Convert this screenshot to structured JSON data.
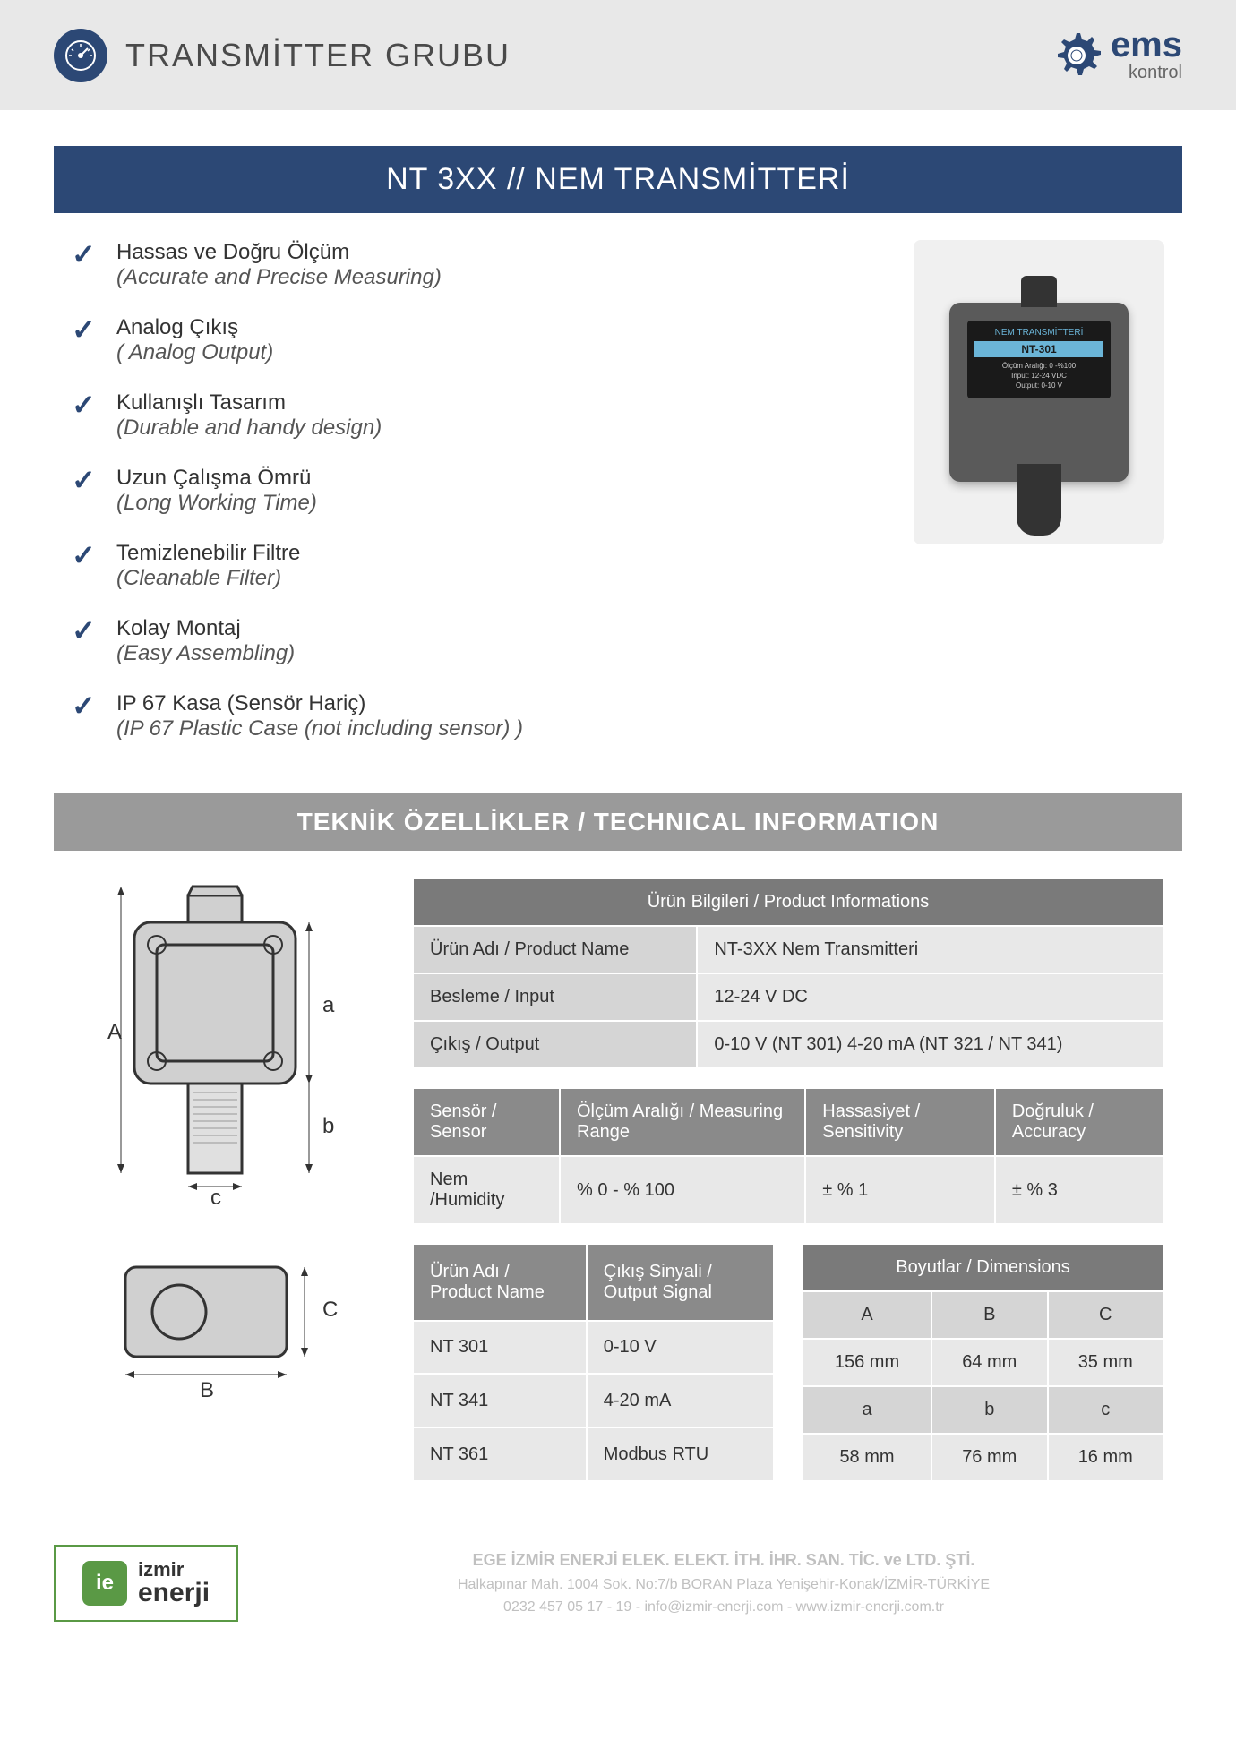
{
  "header": {
    "title": "TRANSMİTTER GRUBU",
    "logo_main": "ems",
    "logo_sub": "kontrol"
  },
  "title_bar": "NT 3XX  //  NEM TRANSMİTTERİ",
  "features": [
    {
      "tr": "Hassas ve Doğru Ölçüm",
      "en": "(Accurate and Precise Measuring)"
    },
    {
      "tr": "Analog Çıkış",
      "en": "( Analog Output)"
    },
    {
      "tr": "Kullanışlı Tasarım",
      "en": "(Durable and handy design)"
    },
    {
      "tr": "Uzun Çalışma Ömrü",
      "en": "(Long Working Time)"
    },
    {
      "tr": "Temizlenebilir Filtre",
      "en": "(Cleanable Filter)"
    },
    {
      "tr": "Kolay Montaj",
      "en": "(Easy Assembling)"
    },
    {
      "tr": "IP 67 Kasa (Sensör Hariç)",
      "en": "(IP 67 Plastic Case (not including sensor) )"
    }
  ],
  "device": {
    "label_top": "NEM TRANSMİTTERİ",
    "model": "NT-301",
    "info": "Ölçüm Aralığı: 0 -%100\nInput: 12-24 VDC\nOutput: 0-10 V"
  },
  "tech_header": "TEKNİK ÖZELLİKLER / TECHNICAL INFORMATION",
  "diagram_labels": {
    "A": "A",
    "a": "a",
    "b": "b",
    "c": "c",
    "B": "B",
    "C": "C"
  },
  "product_info": {
    "header": "Ürün Bilgileri / Product Informations",
    "rows": [
      {
        "label": "Ürün Adı / Product Name",
        "value": "NT-3XX Nem Transmitteri"
      },
      {
        "label": "Besleme / Input",
        "value": "12-24 V DC"
      },
      {
        "label": "Çıkış / Output",
        "value": "0-10 V (NT 301)     4-20 mA (NT 321 / NT 341)"
      }
    ]
  },
  "sensor_table": {
    "headers": [
      "Sensör / Sensor",
      "Ölçüm Aralığı / Measuring Range",
      "Hassasiyet / Sensitivity",
      "Doğruluk / Accuracy"
    ],
    "row": [
      "Nem /Humidity",
      "% 0 - % 100",
      "± % 1",
      "±  % 3"
    ]
  },
  "output_table": {
    "headers": [
      "Ürün Adı / Product Name",
      "Çıkış Sinyali / Output Signal"
    ],
    "rows": [
      [
        "NT 301",
        "0-10 V"
      ],
      [
        "NT 341",
        "4-20 mA"
      ],
      [
        "NT 361",
        "Modbus RTU"
      ]
    ]
  },
  "dimensions_table": {
    "header": "Boyutlar / Dimensions",
    "cols": [
      "A",
      "B",
      "C"
    ],
    "row1": [
      "156 mm",
      "64 mm",
      "35 mm"
    ],
    "cols2": [
      "a",
      "b",
      "c"
    ],
    "row2": [
      "58 mm",
      "76 mm",
      "16 mm"
    ]
  },
  "footer": {
    "logo_top": "izmir",
    "logo_bottom": "enerji",
    "company": "EGE İZMİR ENERJİ ELEK. ELEKT. İTH. İHR. SAN. TİC. ve LTD. ŞTİ.",
    "address": "Halkapınar Mah. 1004 Sok. No:7/b BORAN Plaza Yenişehir-Konak/İZMİR-TÜRKİYE",
    "contact": "0232 457 05 17 - 19  -  info@izmir-enerji.com  -  www.izmir-enerji.com.tr"
  },
  "colors": {
    "primary": "#2c4875",
    "gray_header": "#9a9a9a",
    "gray_th": "#7a7a7a",
    "gray_label": "#d5d5d5",
    "gray_value": "#e8e8e8",
    "green": "#5a9945"
  }
}
